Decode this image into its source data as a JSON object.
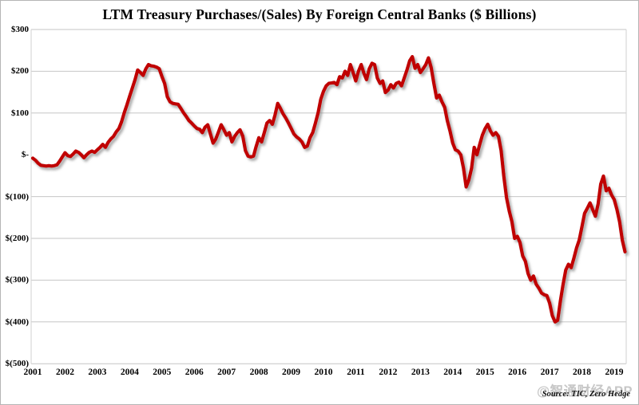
{
  "chart": {
    "title": "LTM Treasury Purchases/(Sales) By Foreign Central Banks ($ Billions)",
    "source_note": "Source: TIC, Zero Hedge",
    "watermark": "@智通财经APP",
    "colors": {
      "line": "#C00000",
      "gridline": "#C6C6C6",
      "plot_border": "#D2D2D2",
      "zero_line": "#7F7F7F",
      "title_text": "#000000",
      "watermark_text": "#C7C7C7"
    },
    "y_axis": {
      "ticks": [
        {
          "label": "$300",
          "value": 300
        },
        {
          "label": "$200",
          "value": 200
        },
        {
          "label": "$100",
          "value": 100
        },
        {
          "label": "$-",
          "value": 0
        },
        {
          "label": "$(100)",
          "value": -100
        },
        {
          "label": "$(200)",
          "value": -200
        },
        {
          "label": "$(300)",
          "value": -300
        },
        {
          "label": "$(400)",
          "value": -400
        },
        {
          "label": "$(500)",
          "value": -500
        }
      ]
    },
    "x_axis": {
      "ticks": [
        "2001",
        "2002",
        "2003",
        "2004",
        "2005",
        "2006",
        "2007",
        "2008",
        "2009",
        "2010",
        "2011",
        "2012",
        "2013",
        "2014",
        "2015",
        "2016",
        "2017",
        "2018",
        "2019"
      ]
    }
  },
  "chart_data": {
    "type": "line",
    "title": "LTM Treasury Purchases/(Sales) By Foreign Central Banks ($ Billions)",
    "series_name": "LTM Treasury purchases/(sales) by foreign central banks",
    "unit": "USD billions",
    "frequency": "monthly",
    "start_month": "2001-01",
    "end_month": "2019-05",
    "xlabel": "",
    "ylabel": "$ Billions",
    "ylim": [
      -500,
      300
    ],
    "grid": "horizontal",
    "legend": "none",
    "zero_reference_line": true,
    "values": [
      -8,
      -13,
      -20,
      -25,
      -26,
      -27,
      -26,
      -27,
      -26,
      -24,
      -15,
      -5,
      5,
      -2,
      -4,
      2,
      9,
      6,
      0,
      -7,
      0,
      6,
      9,
      6,
      12,
      18,
      25,
      18,
      30,
      38,
      44,
      55,
      63,
      79,
      101,
      120,
      140,
      160,
      180,
      203,
      197,
      190,
      206,
      216,
      213,
      212,
      210,
      206,
      187,
      171,
      139,
      127,
      123,
      122,
      121,
      111,
      101,
      92,
      82,
      76,
      69,
      63,
      61,
      53,
      66,
      72,
      50,
      28,
      38,
      55,
      72,
      60,
      47,
      53,
      31,
      44,
      53,
      60,
      45,
      10,
      -3,
      -5,
      -3,
      20,
      41,
      31,
      53,
      76,
      82,
      73,
      95,
      123,
      111,
      98,
      88,
      76,
      63,
      50,
      43,
      38,
      31,
      18,
      21,
      41,
      53,
      76,
      101,
      133,
      152,
      165,
      171,
      172,
      173,
      168,
      187,
      184,
      200,
      190,
      216,
      197,
      177,
      200,
      216,
      195,
      180,
      206,
      219,
      216,
      184,
      171,
      177,
      149,
      155,
      168,
      160,
      171,
      174,
      165,
      184,
      203,
      225,
      235,
      207,
      216,
      197,
      206,
      216,
      232,
      209,
      171,
      136,
      143,
      127,
      114,
      82,
      57,
      28,
      12,
      9,
      0,
      -32,
      -77,
      -60,
      -32,
      18,
      0,
      24,
      47,
      62,
      73,
      57,
      47,
      53,
      44,
      10,
      -52,
      -103,
      -135,
      -160,
      -200,
      -195,
      -210,
      -242,
      -255,
      -284,
      -300,
      -290,
      -310,
      -319,
      -331,
      -335,
      -337,
      -355,
      -385,
      -400,
      -396,
      -350,
      -310,
      -276,
      -262,
      -270,
      -248,
      -223,
      -204,
      -172,
      -140,
      -128,
      -115,
      -131,
      -147,
      -118,
      -70,
      -51,
      -86,
      -80,
      -96,
      -107,
      -131,
      -160,
      -204,
      -232
    ]
  }
}
